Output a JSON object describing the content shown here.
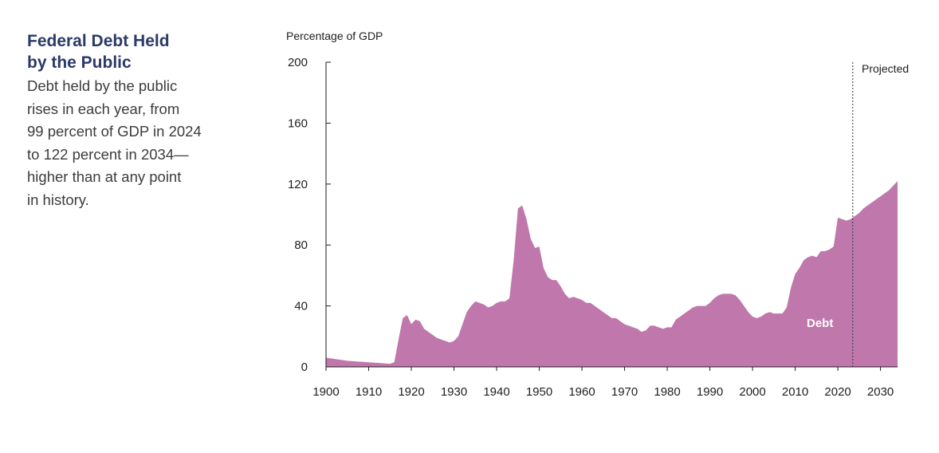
{
  "sidebar": {
    "title": "Federal Debt Held\nby the Public",
    "description": "Debt held by the public\nrises in each year, from\n99 percent of GDP in 2024\nto 122 percent in 2034—\nhigher than at any point\nin history."
  },
  "colors": {
    "area": "#c078ac",
    "title": "#2b3a67",
    "text": "#3c3c3c",
    "axis": "#1e1e1e"
  },
  "chart_data": {
    "type": "area",
    "ylabel": "Percentage of GDP",
    "ylim": [
      0,
      200
    ],
    "xlim": [
      1900,
      2034
    ],
    "y_ticks": [
      0,
      40,
      80,
      120,
      160,
      200
    ],
    "x_ticks": [
      1900,
      1910,
      1920,
      1930,
      1940,
      1950,
      1960,
      1970,
      1980,
      1990,
      2000,
      2010,
      2020,
      2030
    ],
    "projection_start": 2024,
    "projection_label": "Projected",
    "series": [
      {
        "name": "Debt",
        "x": [
          1900,
          1905,
          1910,
          1915,
          1916,
          1917,
          1918,
          1919,
          1920,
          1921,
          1922,
          1923,
          1924,
          1925,
          1926,
          1927,
          1928,
          1929,
          1930,
          1931,
          1932,
          1933,
          1934,
          1935,
          1936,
          1937,
          1938,
          1939,
          1940,
          1941,
          1942,
          1943,
          1944,
          1945,
          1946,
          1947,
          1948,
          1949,
          1950,
          1951,
          1952,
          1953,
          1954,
          1955,
          1956,
          1957,
          1958,
          1959,
          1960,
          1961,
          1962,
          1963,
          1964,
          1965,
          1966,
          1967,
          1968,
          1969,
          1970,
          1971,
          1972,
          1973,
          1974,
          1975,
          1976,
          1977,
          1978,
          1979,
          1980,
          1981,
          1982,
          1983,
          1984,
          1985,
          1986,
          1987,
          1988,
          1989,
          1990,
          1991,
          1992,
          1993,
          1994,
          1995,
          1996,
          1997,
          1998,
          1999,
          2000,
          2001,
          2002,
          2003,
          2004,
          2005,
          2006,
          2007,
          2008,
          2009,
          2010,
          2011,
          2012,
          2013,
          2014,
          2015,
          2016,
          2017,
          2018,
          2019,
          2020,
          2021,
          2022,
          2023,
          2024,
          2025,
          2026,
          2027,
          2028,
          2029,
          2030,
          2031,
          2032,
          2033,
          2034
        ],
        "values": [
          6,
          4,
          3,
          2,
          3,
          18,
          32,
          34,
          28,
          31,
          30,
          25,
          23,
          21,
          19,
          18,
          17,
          16,
          17,
          20,
          28,
          36,
          40,
          43,
          42,
          41,
          39,
          40,
          42,
          43,
          43,
          45,
          70,
          104,
          106,
          97,
          84,
          78,
          79,
          65,
          59,
          57,
          57,
          53,
          48,
          45,
          46,
          45,
          44,
          42,
          42,
          40,
          38,
          36,
          34,
          32,
          32,
          30,
          28,
          27,
          26,
          25,
          23,
          24,
          27,
          27,
          26,
          25,
          26,
          26,
          31,
          33,
          35,
          37,
          39,
          40,
          40,
          40,
          42,
          45,
          47,
          48,
          48,
          48,
          47,
          44,
          40,
          36,
          33,
          32,
          33,
          35,
          36,
          35,
          35,
          35,
          39,
          52,
          61,
          65,
          70,
          72,
          73,
          72,
          76,
          76,
          77,
          79,
          98,
          97,
          96,
          97,
          99,
          101,
          104,
          106,
          108,
          110,
          112,
          114,
          116,
          119,
          122
        ]
      }
    ]
  }
}
